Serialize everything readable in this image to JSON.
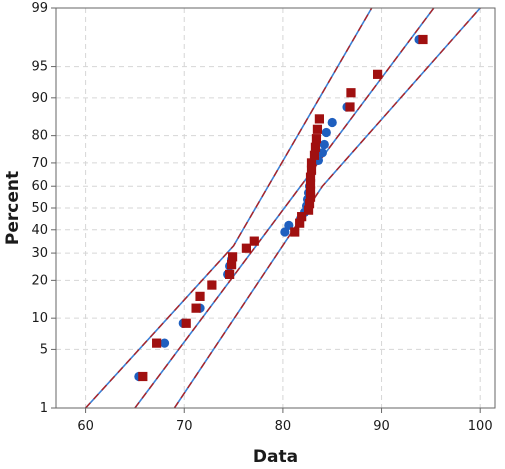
{
  "chart_data": {
    "type": "scatter",
    "title": "",
    "xlabel": "Data",
    "ylabel": "Percent",
    "y_scale": "normal-probability",
    "grid": true,
    "xlim": [
      57,
      101.5
    ],
    "ylim": [
      1,
      99
    ],
    "x_ticks": [
      60,
      70,
      80,
      90,
      100
    ],
    "y_ticks": [
      1,
      5,
      10,
      20,
      30,
      40,
      50,
      60,
      70,
      80,
      90,
      95,
      99
    ],
    "colors": {
      "series_a": "#1f5fbf",
      "series_b": "#a01010",
      "fit_blue": "#3a7fd5",
      "fit_red": "#b22222",
      "grid": "#d6d6d6",
      "axis": "#666666"
    },
    "series": [
      {
        "marker": "circle",
        "color": "#1f5fbf",
        "points": [
          {
            "x": 65.4,
            "y": 2.5
          },
          {
            "x": 68.0,
            "y": 5.8
          },
          {
            "x": 69.9,
            "y": 9.0
          },
          {
            "x": 71.6,
            "y": 12.2
          },
          {
            "x": 74.4,
            "y": 22.0
          },
          {
            "x": 74.6,
            "y": 25.0
          },
          {
            "x": 74.8,
            "y": 27.5
          },
          {
            "x": 80.2,
            "y": 39.0
          },
          {
            "x": 80.6,
            "y": 42.0
          },
          {
            "x": 81.8,
            "y": 45.0
          },
          {
            "x": 82.2,
            "y": 48.0
          },
          {
            "x": 82.4,
            "y": 51.0
          },
          {
            "x": 82.5,
            "y": 54.0
          },
          {
            "x": 82.6,
            "y": 57.0
          },
          {
            "x": 82.7,
            "y": 60.0
          },
          {
            "x": 82.8,
            "y": 63.0
          },
          {
            "x": 82.9,
            "y": 66.0
          },
          {
            "x": 83.6,
            "y": 71.0
          },
          {
            "x": 84.0,
            "y": 74.0
          },
          {
            "x": 84.2,
            "y": 77.0
          },
          {
            "x": 84.4,
            "y": 81.0
          },
          {
            "x": 85.0,
            "y": 84.0
          },
          {
            "x": 86.5,
            "y": 88.0
          },
          {
            "x": 93.8,
            "y": 97.5
          }
        ]
      },
      {
        "marker": "square",
        "color": "#a01010",
        "points": [
          {
            "x": 65.8,
            "y": 2.5
          },
          {
            "x": 67.2,
            "y": 5.8
          },
          {
            "x": 70.2,
            "y": 9.0
          },
          {
            "x": 71.2,
            "y": 12.2
          },
          {
            "x": 71.6,
            "y": 15.2
          },
          {
            "x": 72.8,
            "y": 18.5
          },
          {
            "x": 74.6,
            "y": 22.0
          },
          {
            "x": 74.8,
            "y": 25.5
          },
          {
            "x": 74.9,
            "y": 28.5
          },
          {
            "x": 76.3,
            "y": 32.0
          },
          {
            "x": 77.1,
            "y": 35.0
          },
          {
            "x": 81.2,
            "y": 39.0
          },
          {
            "x": 81.7,
            "y": 43.0
          },
          {
            "x": 81.9,
            "y": 46.0
          },
          {
            "x": 82.6,
            "y": 49.0
          },
          {
            "x": 82.7,
            "y": 52.0
          },
          {
            "x": 82.8,
            "y": 55.0
          },
          {
            "x": 82.8,
            "y": 58.0
          },
          {
            "x": 82.8,
            "y": 61.0
          },
          {
            "x": 82.8,
            "y": 64.0
          },
          {
            "x": 82.9,
            "y": 67.0
          },
          {
            "x": 82.9,
            "y": 70.0
          },
          {
            "x": 83.2,
            "y": 73.0
          },
          {
            "x": 83.3,
            "y": 76.0
          },
          {
            "x": 83.4,
            "y": 79.0
          },
          {
            "x": 83.5,
            "y": 82.0
          },
          {
            "x": 83.7,
            "y": 85.0
          },
          {
            "x": 86.8,
            "y": 88.0
          },
          {
            "x": 86.9,
            "y": 91.0
          },
          {
            "x": 89.6,
            "y": 94.0
          },
          {
            "x": 94.2,
            "y": 97.5
          }
        ]
      }
    ],
    "fit_lines": [
      {
        "name": "fit",
        "points": [
          {
            "x": 65.0,
            "y": 1.0
          },
          {
            "x": 95.3,
            "y": 99.0
          }
        ]
      },
      {
        "name": "lower-band",
        "points": [
          {
            "x": 60.0,
            "y": 1.0
          },
          {
            "x": 75.0,
            "y": 33.0
          },
          {
            "x": 89.0,
            "y": 99.0
          }
        ]
      },
      {
        "name": "upper-band",
        "points": [
          {
            "x": 69.0,
            "y": 1.0
          },
          {
            "x": 84.0,
            "y": 60.0
          },
          {
            "x": 100.0,
            "y": 99.0
          }
        ]
      }
    ]
  }
}
